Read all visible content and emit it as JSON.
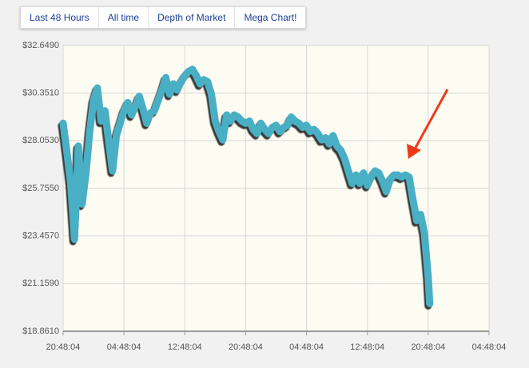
{
  "tabs": [
    "Last 48 Hours",
    "All time",
    "Depth of Market",
    "Mega Chart!"
  ],
  "chart_data": {
    "type": "line",
    "color": "#4aafc4",
    "grid": true,
    "x": [
      0,
      0.5,
      1,
      1.5,
      2,
      2.5,
      3,
      3.5,
      4,
      4.5,
      5,
      5.5,
      6,
      6.5,
      7,
      7.5,
      8,
      8.5,
      9,
      9.5,
      10,
      10.5,
      11,
      11.5,
      12,
      12.5,
      13,
      13.5,
      14,
      14.5,
      15,
      15.5,
      16,
      16.5,
      17,
      17.5,
      18,
      18.5,
      19,
      19.5,
      20,
      20.5,
      21,
      21.5,
      22,
      22.5,
      23,
      23.5,
      24,
      24.5,
      25,
      25.5,
      26,
      26.5,
      27,
      27.5,
      28,
      28.5,
      29,
      29.5,
      30,
      30.5,
      31,
      31.5,
      32,
      32.5,
      33,
      33.5,
      34,
      34.5,
      35,
      35.5,
      36,
      36.5,
      37,
      37.5,
      38,
      38.5,
      39,
      39.5,
      40,
      40.5,
      41,
      41.5,
      42,
      42.5,
      43,
      43.5,
      44,
      44.5,
      45,
      45.5,
      46,
      46.5,
      47,
      47.5,
      48,
      48.2
    ],
    "values": [
      28.9,
      27.5,
      26.0,
      23.3,
      27.8,
      25.0,
      26.5,
      28.5,
      30.0,
      30.6,
      29.0,
      29.5,
      28.0,
      26.6,
      28.3,
      28.9,
      29.5,
      29.9,
      29.3,
      29.7,
      30.2,
      29.6,
      28.9,
      29.4,
      29.5,
      30.0,
      30.5,
      31.1,
      30.3,
      30.8,
      30.5,
      30.9,
      31.2,
      31.4,
      31.5,
      31.2,
      30.8,
      31.0,
      30.9,
      30.3,
      29.0,
      28.5,
      28.1,
      29.3,
      29.0,
      29.3,
      29.2,
      29.0,
      28.9,
      29.0,
      28.6,
      28.4,
      28.9,
      28.6,
      28.4,
      28.7,
      28.8,
      28.5,
      28.7,
      28.8,
      29.2,
      29.0,
      28.9,
      28.7,
      28.8,
      28.5,
      28.6,
      28.4,
      28.1,
      28.2,
      27.9,
      28.3,
      27.8,
      27.6,
      27.2,
      26.6,
      26.0,
      26.4,
      26.0,
      26.5,
      25.9,
      26.3,
      26.6,
      26.5,
      26.1,
      25.6,
      26.2,
      26.4,
      26.4,
      26.3,
      26.4,
      26.3,
      25.2,
      24.2,
      24.5,
      23.6,
      21.5,
      20.2
    ],
    "xlim": [
      0,
      56
    ],
    "xticks": [
      {
        "value": 0,
        "label": "20:48:04"
      },
      {
        "value": 8,
        "label": "04:48:04"
      },
      {
        "value": 16,
        "label": "12:48:04"
      },
      {
        "value": 24,
        "label": "20:48:04"
      },
      {
        "value": 32,
        "label": "04:48:04"
      },
      {
        "value": 40,
        "label": "12:48:04"
      },
      {
        "value": 48,
        "label": "20:48:04"
      },
      {
        "value": 56,
        "label": "04:48:04"
      }
    ],
    "ylim": [
      18.861,
      32.649
    ],
    "yticks": [
      {
        "value": 18.861,
        "label": "$18.8610"
      },
      {
        "value": 21.159,
        "label": "$21.1590"
      },
      {
        "value": 23.457,
        "label": "$23.4570"
      },
      {
        "value": 25.755,
        "label": "$25.7550"
      },
      {
        "value": 28.053,
        "label": "$28.0530"
      },
      {
        "value": 30.351,
        "label": "$30.3510"
      },
      {
        "value": 32.649,
        "label": "$32.6490"
      }
    ]
  }
}
